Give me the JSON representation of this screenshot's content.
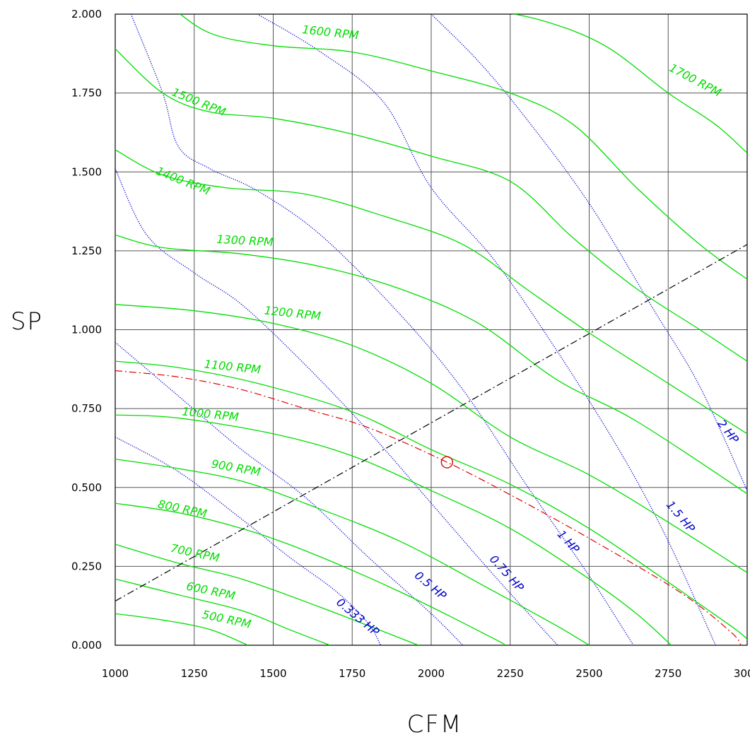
{
  "chart_data": {
    "type": "line",
    "title": "",
    "xlabel": "CFM",
    "ylabel": "SP",
    "xlim": [
      1000,
      3000
    ],
    "ylim": [
      0,
      2
    ],
    "x_ticks": [
      "1000",
      "1250",
      "1500",
      "1750",
      "2000",
      "2250",
      "2500",
      "2750",
      "3000"
    ],
    "y_ticks": [
      "0.000",
      "0.250",
      "0.500",
      "0.750",
      "1.000",
      "1.250",
      "1.500",
      "1.750",
      "2.000"
    ],
    "grid": true,
    "colors": {
      "rpm": "#00dd00",
      "hp": "#0000cc",
      "system": "#dd0000",
      "operating_line": "#000000",
      "grid": "#555555"
    },
    "rpm_series": [
      {
        "name": "500 RPM",
        "points": [
          [
            1000,
            0.1
          ],
          [
            1150,
            0.08
          ],
          [
            1300,
            0.05
          ],
          [
            1420,
            0.0
          ]
        ]
      },
      {
        "name": "600 RPM",
        "points": [
          [
            1000,
            0.21
          ],
          [
            1200,
            0.16
          ],
          [
            1400,
            0.11
          ],
          [
            1550,
            0.05
          ],
          [
            1680,
            0.0
          ]
        ]
      },
      {
        "name": "700 RPM",
        "points": [
          [
            1000,
            0.32
          ],
          [
            1200,
            0.26
          ],
          [
            1400,
            0.21
          ],
          [
            1650,
            0.12
          ],
          [
            1960,
            0.0
          ]
        ]
      },
      {
        "name": "800 RPM",
        "points": [
          [
            1000,
            0.45
          ],
          [
            1200,
            0.42
          ],
          [
            1400,
            0.37
          ],
          [
            1600,
            0.3
          ],
          [
            1900,
            0.17
          ],
          [
            2200,
            0.02
          ],
          [
            2230,
            0.0
          ]
        ]
      },
      {
        "name": "900 RPM",
        "points": [
          [
            1000,
            0.59
          ],
          [
            1200,
            0.56
          ],
          [
            1400,
            0.52
          ],
          [
            1600,
            0.45
          ],
          [
            1900,
            0.33
          ],
          [
            2200,
            0.17
          ],
          [
            2400,
            0.06
          ],
          [
            2500,
            0.0
          ]
        ]
      },
      {
        "name": "1000 RPM",
        "points": [
          [
            1000,
            0.73
          ],
          [
            1200,
            0.72
          ],
          [
            1500,
            0.67
          ],
          [
            1750,
            0.6
          ],
          [
            2000,
            0.49
          ],
          [
            2250,
            0.37
          ],
          [
            2500,
            0.21
          ],
          [
            2650,
            0.1
          ],
          [
            2760,
            0.0
          ]
        ]
      },
      {
        "name": "1100 RPM",
        "points": [
          [
            1000,
            0.9
          ],
          [
            1200,
            0.88
          ],
          [
            1450,
            0.83
          ],
          [
            1750,
            0.74
          ],
          [
            2000,
            0.62
          ],
          [
            2250,
            0.51
          ],
          [
            2500,
            0.37
          ],
          [
            2750,
            0.2
          ],
          [
            2950,
            0.06
          ],
          [
            3000,
            0.02
          ]
        ]
      },
      {
        "name": "1200 RPM",
        "points": [
          [
            1000,
            1.08
          ],
          [
            1250,
            1.06
          ],
          [
            1500,
            1.02
          ],
          [
            1750,
            0.95
          ],
          [
            2000,
            0.83
          ],
          [
            2250,
            0.66
          ],
          [
            2500,
            0.54
          ],
          [
            2750,
            0.39
          ],
          [
            3000,
            0.23
          ]
        ]
      },
      {
        "name": "1300 RPM",
        "points": [
          [
            1000,
            1.3
          ],
          [
            1150,
            1.26
          ],
          [
            1400,
            1.24
          ],
          [
            1650,
            1.2
          ],
          [
            1900,
            1.13
          ],
          [
            2150,
            1.02
          ],
          [
            2400,
            0.84
          ],
          [
            2650,
            0.71
          ],
          [
            3000,
            0.48
          ]
        ]
      },
      {
        "name": "1400 RPM",
        "points": [
          [
            1000,
            1.57
          ],
          [
            1150,
            1.49
          ],
          [
            1350,
            1.45
          ],
          [
            1600,
            1.43
          ],
          [
            1850,
            1.36
          ],
          [
            2100,
            1.27
          ],
          [
            2300,
            1.13
          ],
          [
            2500,
            0.99
          ],
          [
            2750,
            0.83
          ],
          [
            3000,
            0.67
          ]
        ]
      },
      {
        "name": "1500 RPM",
        "points": [
          [
            1000,
            1.89
          ],
          [
            1150,
            1.75
          ],
          [
            1300,
            1.69
          ],
          [
            1500,
            1.67
          ],
          [
            1750,
            1.62
          ],
          [
            2000,
            1.55
          ],
          [
            2250,
            1.47
          ],
          [
            2450,
            1.29
          ],
          [
            2650,
            1.13
          ],
          [
            2850,
            1.0
          ],
          [
            3000,
            0.9
          ]
        ]
      },
      {
        "name": "1600 RPM",
        "points": [
          [
            1000,
            2.12
          ],
          [
            1150,
            2.04
          ],
          [
            1300,
            1.94
          ],
          [
            1500,
            1.9
          ],
          [
            1750,
            1.88
          ],
          [
            2000,
            1.82
          ],
          [
            2250,
            1.75
          ],
          [
            2450,
            1.65
          ],
          [
            2650,
            1.45
          ],
          [
            2850,
            1.27
          ],
          [
            3000,
            1.16
          ]
        ]
      },
      {
        "name": "1700 RPM",
        "points": [
          [
            2150,
            2.02
          ],
          [
            2350,
            1.98
          ],
          [
            2550,
            1.9
          ],
          [
            2750,
            1.75
          ],
          [
            2900,
            1.65
          ],
          [
            3000,
            1.56
          ]
        ]
      }
    ],
    "hp_series": [
      {
        "name": "0.333 HP",
        "points": [
          [
            1000,
            0.66
          ],
          [
            1200,
            0.55
          ],
          [
            1400,
            0.4
          ],
          [
            1550,
            0.28
          ],
          [
            1700,
            0.17
          ],
          [
            1800,
            0.07
          ],
          [
            1840,
            0.0
          ]
        ]
      },
      {
        "name": "0.5 HP",
        "points": [
          [
            1000,
            0.96
          ],
          [
            1200,
            0.79
          ],
          [
            1400,
            0.62
          ],
          [
            1600,
            0.47
          ],
          [
            1800,
            0.28
          ],
          [
            2000,
            0.1
          ],
          [
            2100,
            0.0
          ]
        ]
      },
      {
        "name": "0.75 HP",
        "points": [
          [
            1000,
            1.51
          ],
          [
            1100,
            1.3
          ],
          [
            1250,
            1.18
          ],
          [
            1400,
            1.08
          ],
          [
            1600,
            0.89
          ],
          [
            1800,
            0.68
          ],
          [
            2000,
            0.45
          ],
          [
            2200,
            0.22
          ],
          [
            2400,
            0.0
          ]
        ]
      },
      {
        "name": "1 HP",
        "points": [
          [
            1050,
            2.0
          ],
          [
            1150,
            1.75
          ],
          [
            1200,
            1.58
          ],
          [
            1300,
            1.51
          ],
          [
            1450,
            1.44
          ],
          [
            1650,
            1.3
          ],
          [
            1900,
            1.05
          ],
          [
            2100,
            0.81
          ],
          [
            2300,
            0.51
          ],
          [
            2500,
            0.22
          ],
          [
            2640,
            0.0
          ]
        ]
      },
      {
        "name": "1.5 HP",
        "points": [
          [
            1450,
            2.0
          ],
          [
            1650,
            1.88
          ],
          [
            1850,
            1.72
          ],
          [
            2000,
            1.45
          ],
          [
            2200,
            1.22
          ],
          [
            2400,
            0.93
          ],
          [
            2600,
            0.61
          ],
          [
            2750,
            0.33
          ],
          [
            2900,
            0.0
          ]
        ]
      },
      {
        "name": "2 HP",
        "points": [
          [
            2000,
            2.0
          ],
          [
            2150,
            1.85
          ],
          [
            2300,
            1.67
          ],
          [
            2500,
            1.4
          ],
          [
            2700,
            1.07
          ],
          [
            2850,
            0.82
          ],
          [
            3000,
            0.49
          ]
        ]
      }
    ],
    "system_curve": {
      "points": [
        [
          1000,
          0.87
        ],
        [
          1200,
          0.85
        ],
        [
          1400,
          0.81
        ],
        [
          1600,
          0.75
        ],
        [
          1800,
          0.69
        ],
        [
          2050,
          0.58
        ],
        [
          2300,
          0.45
        ],
        [
          2550,
          0.31
        ],
        [
          2800,
          0.16
        ],
        [
          2950,
          0.04
        ],
        [
          2980,
          0.0
        ]
      ]
    },
    "operating_line": {
      "points": [
        [
          1000,
          0.14
        ],
        [
          3000,
          1.27
        ]
      ]
    },
    "operating_point": {
      "cfm": 2050,
      "sp": 0.58
    },
    "rpm_labels": [
      {
        "text": "500 RPM",
        "x": 1350,
        "y": 0.07,
        "angle": 12
      },
      {
        "text": "600 RPM",
        "x": 1300,
        "y": 0.16,
        "angle": 12
      },
      {
        "text": "700 RPM",
        "x": 1250,
        "y": 0.28,
        "angle": 12
      },
      {
        "text": "800 RPM",
        "x": 1210,
        "y": 0.42,
        "angle": 12
      },
      {
        "text": "900 RPM",
        "x": 1380,
        "y": 0.55,
        "angle": 10
      },
      {
        "text": "1000 RPM",
        "x": 1300,
        "y": 0.72,
        "angle": 6
      },
      {
        "text": "1100 RPM",
        "x": 1370,
        "y": 0.87,
        "angle": 6
      },
      {
        "text": "1200 RPM",
        "x": 1560,
        "y": 1.04,
        "angle": 6
      },
      {
        "text": "1300 RPM",
        "x": 1410,
        "y": 1.27,
        "angle": 3
      },
      {
        "text": "1400 RPM",
        "x": 1210,
        "y": 1.46,
        "angle": 22
      },
      {
        "text": "1500 RPM",
        "x": 1260,
        "y": 1.71,
        "angle": 22
      },
      {
        "text": "1600 RPM",
        "x": 1680,
        "y": 1.93,
        "angle": 6
      },
      {
        "text": "1700 RPM",
        "x": 2830,
        "y": 1.78,
        "angle": 28
      }
    ],
    "hp_labels": [
      {
        "text": "0.333 HP",
        "x": 1760,
        "y": 0.08,
        "angle": 40
      },
      {
        "text": "0.5 HP",
        "x": 1990,
        "y": 0.18,
        "angle": 40
      },
      {
        "text": "0.75 HP",
        "x": 2230,
        "y": 0.22,
        "angle": 48
      },
      {
        "text": "1 HP",
        "x": 2425,
        "y": 0.32,
        "angle": 48
      },
      {
        "text": "1.5 HP",
        "x": 2780,
        "y": 0.4,
        "angle": 50
      },
      {
        "text": "2 HP",
        "x": 2930,
        "y": 0.67,
        "angle": 52
      }
    ]
  }
}
